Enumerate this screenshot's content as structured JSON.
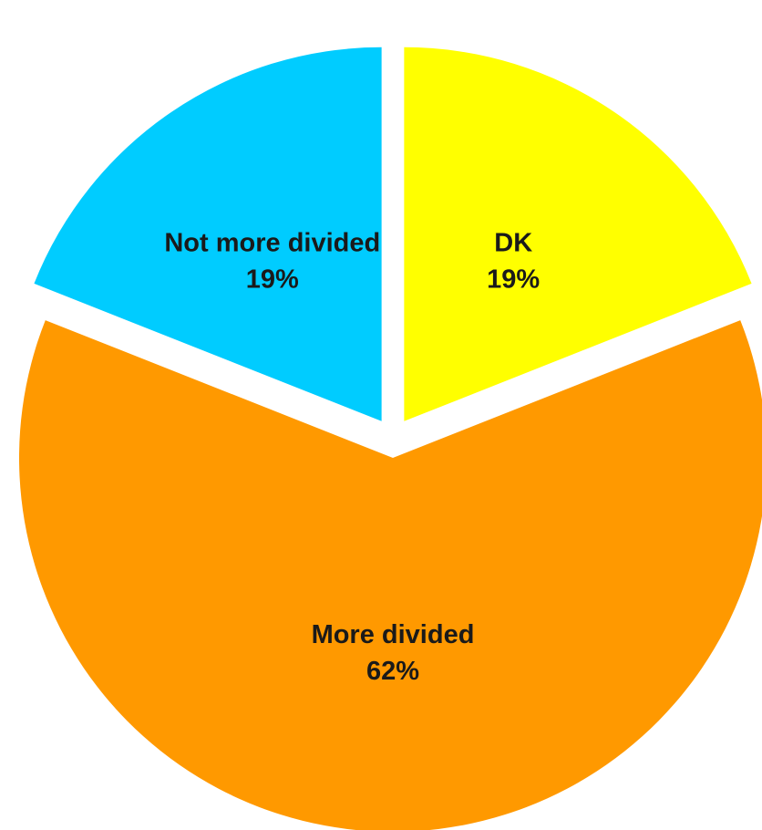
{
  "chart_data": {
    "type": "pie",
    "title": "",
    "slices": [
      {
        "label": "DK",
        "value": 19,
        "value_label": "19%",
        "color": "#FFFF00"
      },
      {
        "label": "More divided",
        "value": 62,
        "value_label": "62%",
        "color": "#FF9900"
      },
      {
        "label": "Not more divided",
        "value": 19,
        "value_label": "19%",
        "color": "#00CCFF"
      }
    ],
    "start_direction": "top",
    "direction": "clockwise",
    "exploded": true,
    "legend": "none"
  }
}
